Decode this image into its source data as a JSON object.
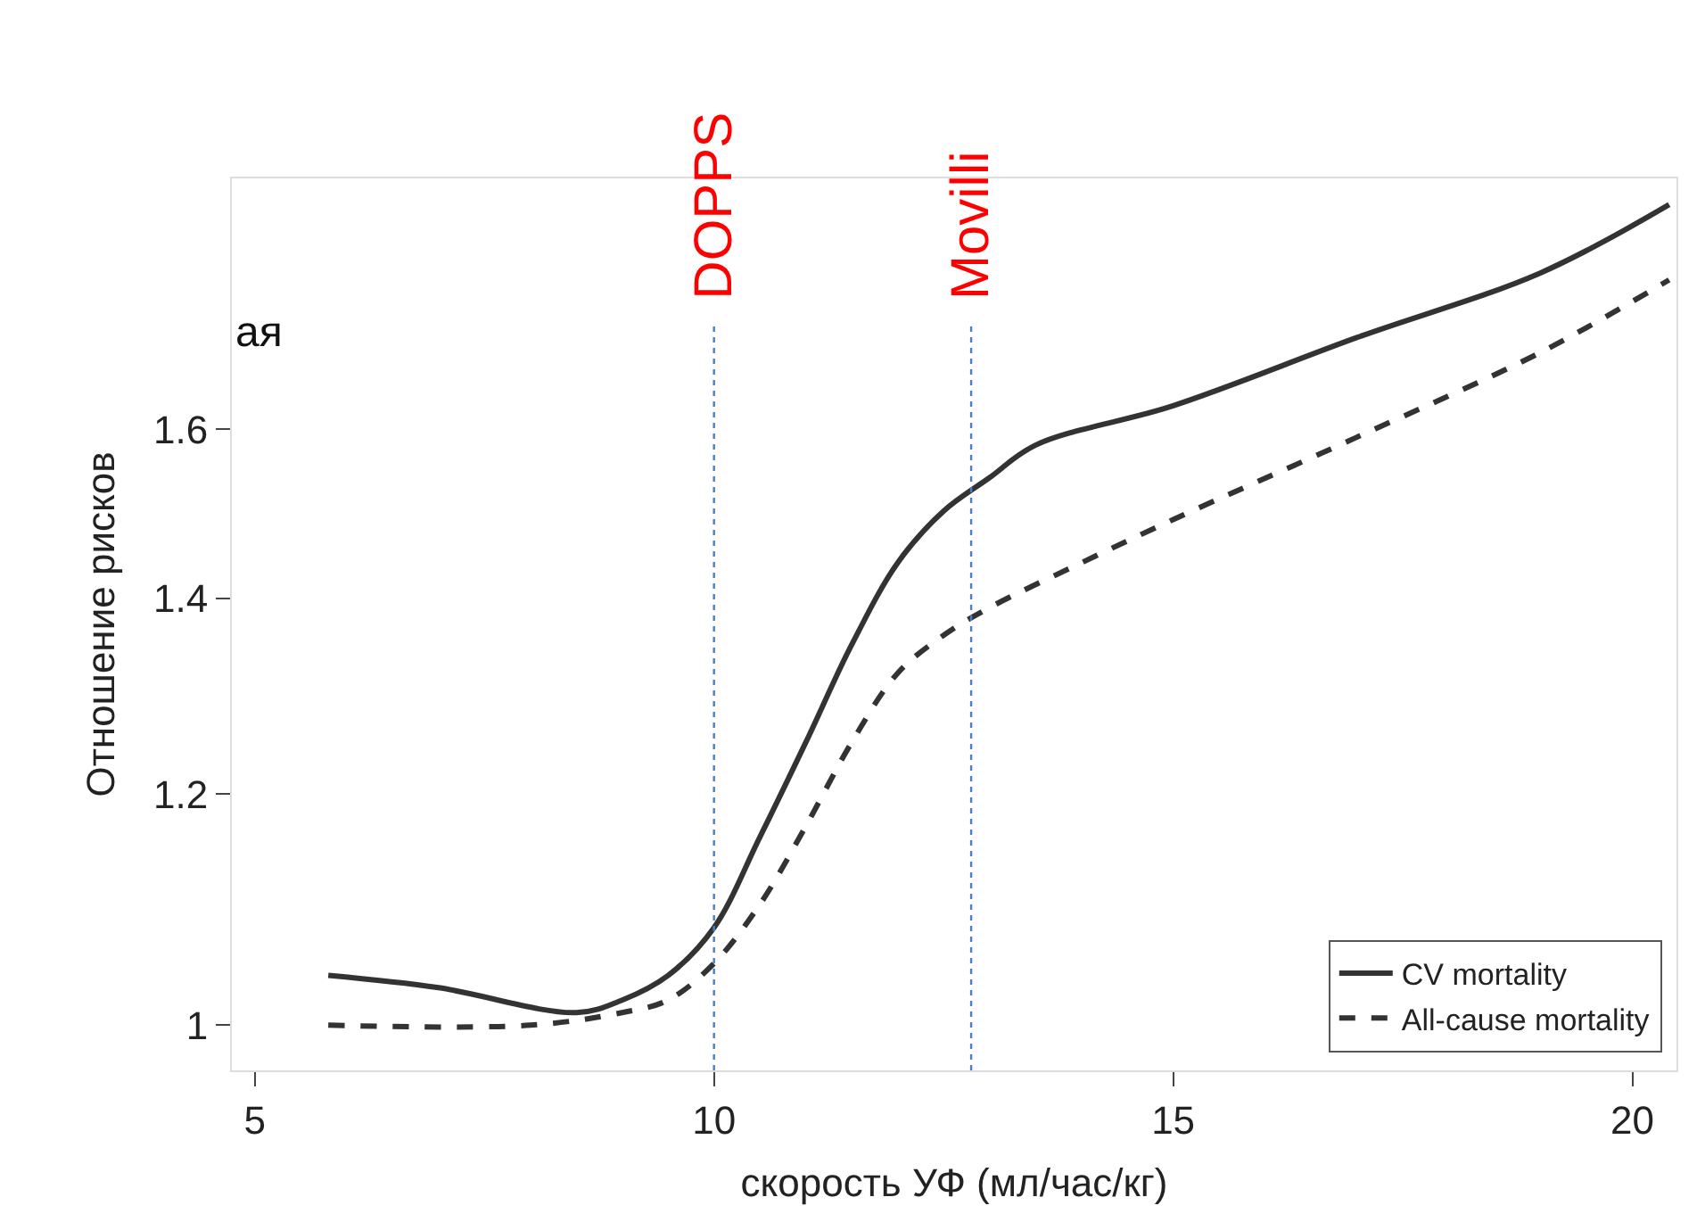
{
  "chart_data": {
    "type": "line",
    "xlabel": "скорость УФ (мл/час/кг)",
    "ylabel": "Отношение рисков",
    "log": "y",
    "legend": "bottom right",
    "marker": "none",
    "xlim": [
      4.75,
      20.48
    ],
    "xticks": [
      5,
      10,
      15,
      20
    ],
    "ylim": [
      0.965,
      1.95
    ],
    "yticks": [
      1,
      1.2,
      1.4,
      1.6
    ],
    "annotations": [
      "ая"
    ],
    "ref_lines": [
      {
        "axis": "x",
        "value": 10,
        "label": "DOPPS",
        "color": "#4a7fc1",
        "line_style": "dotted"
      },
      {
        "axis": "x",
        "value": 12.8,
        "label": "Movilli",
        "color": "#4a7fc1",
        "line_style": "dotted"
      }
    ],
    "series": [
      {
        "name": "CV mortality",
        "color": "#333333",
        "line_style": "solid",
        "x": [
          5.8,
          7,
          8.5,
          9,
          9.5,
          10,
          10.5,
          11,
          11.5,
          12,
          12.5,
          13,
          13.5,
          15,
          17,
          19,
          20.4
        ],
        "values": [
          1.04,
          1.03,
          1.01,
          1.02,
          1.04,
          1.08,
          1.16,
          1.25,
          1.35,
          1.44,
          1.5,
          1.54,
          1.58,
          1.63,
          1.72,
          1.81,
          1.91
        ]
      },
      {
        "name": "All-cause mortality",
        "color": "#333333",
        "line_style": "dashed",
        "x": [
          5.8,
          8,
          9,
          9.5,
          10,
          10.5,
          11,
          11.5,
          12,
          12.5,
          13,
          14,
          15,
          17,
          19,
          20.4
        ],
        "values": [
          1.0,
          1.0,
          1.01,
          1.02,
          1.05,
          1.1,
          1.17,
          1.25,
          1.32,
          1.36,
          1.39,
          1.44,
          1.49,
          1.59,
          1.7,
          1.8
        ]
      }
    ]
  }
}
